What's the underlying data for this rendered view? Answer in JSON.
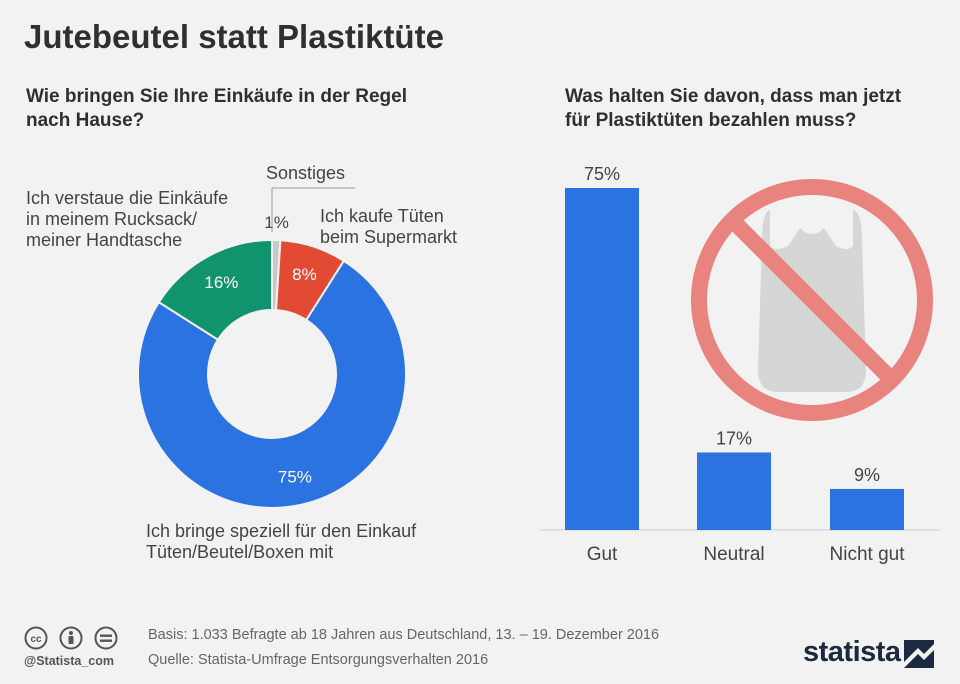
{
  "title": "Jutebeutel statt Plastiktüte",
  "left": {
    "question": "Wie bringen Sie Ihre Einkäufe in der Regel\nnach Hause?",
    "labels": {
      "sonstiges": "Sonstiges",
      "rucksack": "Ich verstaue die Einkäufe\nin meinem Rucksack/\nmeiner Handtasche",
      "tueten": "Ich kaufe Tüten\nbeim Supermarkt",
      "speziell": "Ich bringe speziell für den Einkauf\nTüten/Beutel/Boxen mit"
    }
  },
  "right": {
    "question": "Was halten Sie davon, dass man jetzt\nfür Plastiktüten bezahlen muss?",
    "icon": "no-plastic-bag-icon"
  },
  "chart_data": [
    {
      "type": "pie",
      "subtype": "donut",
      "title": "Wie bringen Sie Ihre Einkäufe in der Regel nach Hause?",
      "slices": [
        {
          "name": "Sonstiges",
          "value": 1,
          "label": "1%",
          "color": "#c8c8c8"
        },
        {
          "name": "Ich kaufe Tüten beim Supermarkt",
          "value": 8,
          "label": "8%",
          "color": "#e24a33"
        },
        {
          "name": "Ich bringe speziell für den Einkauf Tüten/Beutel/Boxen mit",
          "value": 75,
          "label": "75%",
          "color": "#2a73e0"
        },
        {
          "name": "Ich verstaue die Einkäufe in meinem Rucksack/ meiner Handtasche",
          "value": 16,
          "label": "16%",
          "color": "#11946e"
        }
      ]
    },
    {
      "type": "bar",
      "title": "Was halten Sie davon, dass man jetzt für Plastiktüten bezahlen muss?",
      "categories": [
        "Gut",
        "Neutral",
        "Nicht gut"
      ],
      "values": [
        75,
        17,
        9
      ],
      "value_labels": [
        "75%",
        "17%",
        "9%"
      ],
      "ylim": [
        0,
        75
      ],
      "color": "#2a73e0"
    }
  ],
  "footer": {
    "basis": "Basis: 1.033 Befragte ab 18 Jahren aus Deutschland, 13. – 19. Dezember 2016",
    "source": "Quelle: Statista-Umfrage Entsorgungsverhalten 2016",
    "handle": "@Statista_com",
    "brand": "statista"
  },
  "colors": {
    "bg": "#f2f2f2",
    "blue": "#2a73e0",
    "red": "#e24a33",
    "green": "#11946e",
    "grey": "#c8c8c8",
    "forbidden": "#e8837d",
    "bag": "#d6d6d6"
  }
}
